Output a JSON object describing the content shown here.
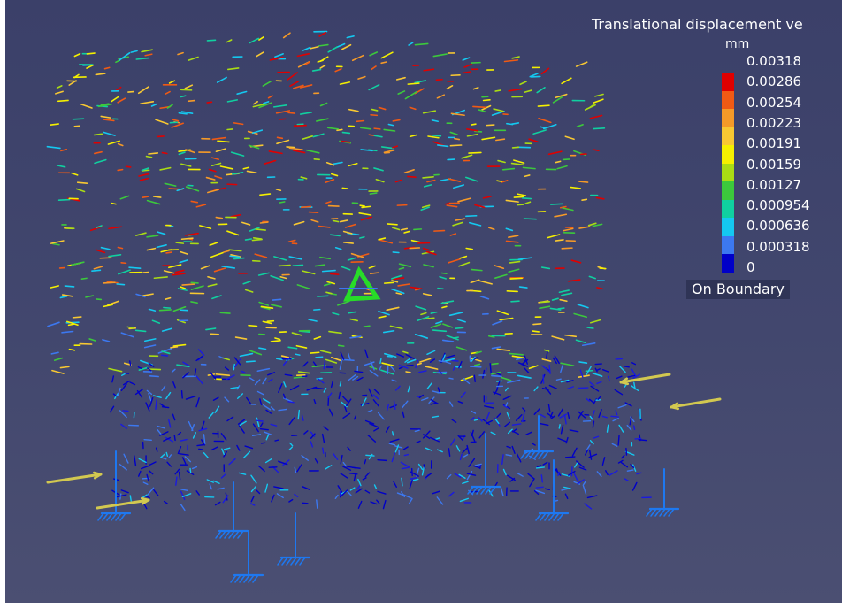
{
  "legend": {
    "title": "Translational displacement ve",
    "unit": "mm",
    "values": [
      "0.00318",
      "0.00286",
      "0.00254",
      "0.00223",
      "0.00191",
      "0.00159",
      "0.00127",
      "0.000954",
      "0.000636",
      "0.000318",
      "0"
    ],
    "colors": [
      "#e00000",
      "#f05a14",
      "#f59a28",
      "#f8c832",
      "#f5f000",
      "#aadc14",
      "#3cc83c",
      "#10d0a0",
      "#14c8f0",
      "#3c78f0",
      "#0000c8"
    ],
    "boundary_label": "On Boundary"
  },
  "scene": {
    "background_color": "#3b4069",
    "support_color": "#1e78f0",
    "load_arrow_color": "#d2c850",
    "axis_marker_color": "#28dc28"
  }
}
